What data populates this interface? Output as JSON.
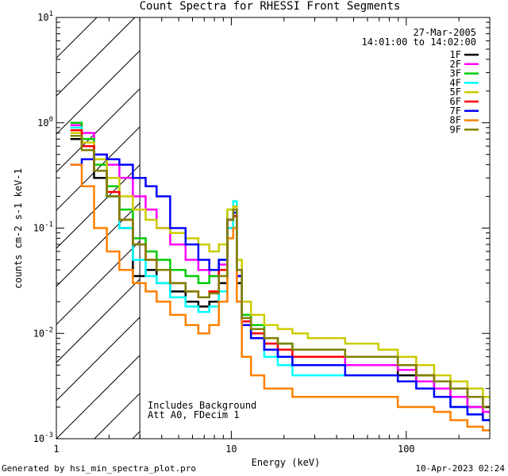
{
  "title": "Count Spectra for RHESSI Front Segments",
  "date": "27-Mar-2005",
  "time_range": "14:01:00 to 14:02:00",
  "notes": {
    "line1": "Includes Background",
    "line2": "Att A0, FDecim 1"
  },
  "footer": {
    "left": "Generated by hsi_min_spectra_plot.pro",
    "right": "10-Apr-2023 02:24"
  },
  "colors": {
    "1F": "#000000",
    "2F": "#ff00ff",
    "3F": "#00cc00",
    "4F": "#00ffff",
    "5F": "#cccc00",
    "6F": "#ff0000",
    "7F": "#0000ff",
    "8F": "#ff8000",
    "9F": "#808000"
  },
  "chart_data": {
    "type": "line",
    "title": "Count Spectra for RHESSI Front Segments",
    "xlabel": "Energy (keV)",
    "ylabel": "counts cm-2 s-1 keV-1",
    "xscale": "log",
    "yscale": "log",
    "xlim": [
      1,
      300
    ],
    "ylim": [
      0.001,
      10
    ],
    "x_ticks": [
      "1",
      "10",
      "100"
    ],
    "y_ticks": [
      "10^-3",
      "10^-2",
      "10^-1",
      "10^0",
      "10^1"
    ],
    "legend": "top-right",
    "shaded_region_below_keV": 3,
    "x": [
      1.3,
      1.5,
      1.8,
      2.1,
      2.5,
      3.0,
      3.5,
      4.0,
      5.0,
      6.0,
      7.0,
      8.0,
      9.0,
      10.0,
      10.5,
      11.0,
      12.0,
      14.0,
      17.0,
      20.0,
      25.0,
      30.0,
      40.0,
      50.0,
      60.0,
      80.0,
      100.0,
      130.0,
      160.0,
      200.0,
      250.0,
      300.0
    ],
    "series": [
      {
        "name": "1F",
        "values": [
          0.7,
          0.6,
          0.3,
          0.2,
          0.1,
          0.035,
          0.04,
          0.03,
          0.025,
          0.02,
          0.018,
          0.02,
          0.03,
          0.1,
          0.13,
          0.03,
          0.012,
          0.009,
          0.007,
          0.006,
          0.005,
          0.005,
          0.005,
          0.005,
          0.005,
          0.005,
          0.004,
          0.0035,
          0.003,
          0.0025,
          0.002,
          0.0015
        ]
      },
      {
        "name": "2F",
        "values": [
          0.95,
          0.8,
          0.5,
          0.4,
          0.3,
          0.2,
          0.15,
          0.1,
          0.07,
          0.05,
          0.04,
          0.035,
          0.045,
          0.12,
          0.16,
          0.035,
          0.013,
          0.01,
          0.008,
          0.007,
          0.006,
          0.006,
          0.006,
          0.005,
          0.005,
          0.005,
          0.0045,
          0.0035,
          0.003,
          0.0025,
          0.002,
          0.0018
        ]
      },
      {
        "name": "3F",
        "values": [
          1.0,
          0.7,
          0.4,
          0.25,
          0.15,
          0.08,
          0.06,
          0.05,
          0.04,
          0.035,
          0.03,
          0.035,
          0.05,
          0.15,
          0.14,
          0.04,
          0.015,
          0.012,
          0.009,
          0.008,
          0.007,
          0.007,
          0.007,
          0.006,
          0.006,
          0.006,
          0.005,
          0.004,
          0.0035,
          0.003,
          0.0025,
          0.002
        ]
      },
      {
        "name": "4F",
        "values": [
          0.9,
          0.6,
          0.35,
          0.2,
          0.1,
          0.05,
          0.035,
          0.03,
          0.022,
          0.018,
          0.016,
          0.018,
          0.025,
          0.1,
          0.18,
          0.035,
          0.012,
          0.009,
          0.006,
          0.005,
          0.004,
          0.004,
          0.004,
          0.004,
          0.004,
          0.004,
          0.0035,
          0.003,
          0.0025,
          0.002,
          0.0017,
          0.0015
        ]
      },
      {
        "name": "5F",
        "values": [
          0.8,
          0.65,
          0.45,
          0.3,
          0.2,
          0.15,
          0.12,
          0.1,
          0.09,
          0.08,
          0.07,
          0.06,
          0.07,
          0.15,
          0.16,
          0.05,
          0.02,
          0.015,
          0.012,
          0.011,
          0.01,
          0.009,
          0.009,
          0.008,
          0.008,
          0.007,
          0.006,
          0.005,
          0.004,
          0.0035,
          0.003,
          0.0025
        ]
      },
      {
        "name": "6F",
        "values": [
          0.85,
          0.6,
          0.35,
          0.22,
          0.12,
          0.07,
          0.05,
          0.04,
          0.03,
          0.025,
          0.022,
          0.025,
          0.04,
          0.12,
          0.13,
          0.035,
          0.013,
          0.01,
          0.008,
          0.007,
          0.006,
          0.006,
          0.006,
          0.006,
          0.006,
          0.006,
          0.005,
          0.004,
          0.0035,
          0.003,
          0.0025,
          0.002
        ]
      },
      {
        "name": "7F",
        "values": [
          0.4,
          0.45,
          0.5,
          0.45,
          0.4,
          0.3,
          0.25,
          0.2,
          0.1,
          0.07,
          0.05,
          0.04,
          0.05,
          0.12,
          0.14,
          0.035,
          0.012,
          0.009,
          0.007,
          0.006,
          0.005,
          0.005,
          0.005,
          0.004,
          0.004,
          0.004,
          0.0035,
          0.003,
          0.0025,
          0.002,
          0.0017,
          0.0015
        ]
      },
      {
        "name": "8F",
        "values": [
          0.4,
          0.25,
          0.1,
          0.06,
          0.04,
          0.03,
          0.025,
          0.02,
          0.015,
          0.012,
          0.01,
          0.012,
          0.02,
          0.08,
          0.1,
          0.02,
          0.006,
          0.004,
          0.003,
          0.003,
          0.0025,
          0.0025,
          0.0025,
          0.0025,
          0.0025,
          0.0025,
          0.002,
          0.002,
          0.0018,
          0.0015,
          0.0013,
          0.0012
        ]
      },
      {
        "name": "9F",
        "values": [
          0.75,
          0.55,
          0.35,
          0.2,
          0.12,
          0.07,
          0.05,
          0.04,
          0.03,
          0.025,
          0.022,
          0.024,
          0.035,
          0.12,
          0.15,
          0.04,
          0.014,
          0.011,
          0.009,
          0.008,
          0.007,
          0.007,
          0.007,
          0.006,
          0.006,
          0.006,
          0.005,
          0.004,
          0.0035,
          0.003,
          0.0025,
          0.002
        ]
      }
    ]
  }
}
